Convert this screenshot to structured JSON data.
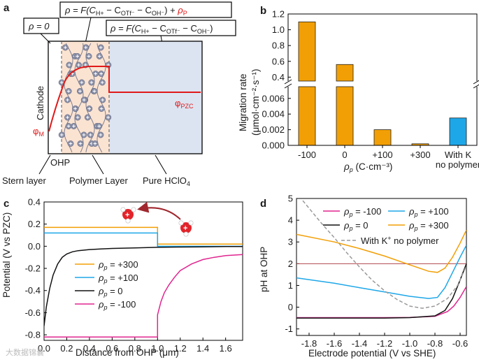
{
  "panel_a": {
    "label": "a",
    "eq_zero": "ρ = 0",
    "eq_polymer_pre": "ρ = F(C",
    "eq_polymer_h": "H+",
    "eq_polymer_mid1": " − C",
    "eq_polymer_otf": "OTf⁻",
    "eq_polymer_mid2": " − C",
    "eq_polymer_oh": "OH⁻",
    "eq_polymer_post": ") + ",
    "eq_polymer_rho": "ρ",
    "eq_polymer_rho_sub": "P",
    "eq_bulk_pre": "ρ = F(C",
    "eq_bulk_h": "H+",
    "eq_bulk_mid1": " − C",
    "eq_bulk_otf": "OTf⁻",
    "eq_bulk_mid2": " − C",
    "eq_bulk_oh": "OH⁻",
    "eq_bulk_post": ")",
    "cathode": "Cathode",
    "phi_m": "φ",
    "phi_m_sub": "M",
    "phi_pzc": "φ",
    "phi_pzc_sub": "PZC",
    "ohp": "OHP",
    "stern": "Stern layer",
    "polymer_layer": "Polymer Layer",
    "pure_pre": "Pure HClO",
    "pure_sub": "4",
    "colors": {
      "polymer_fill": "#fbe3d2",
      "bulk_fill": "#dce4f2",
      "potential": "#e11919"
    }
  },
  "panel_b": {
    "label": "b",
    "ylabel_main": "Migration rate",
    "ylabel_units": "(μmol·cm⁻²·s⁻¹)",
    "xlabel_pre": "ρ",
    "xlabel_sub": "p",
    "xlabel_post": " (C·cm⁻³)",
    "category_last_line2": "no polymer",
    "chart_data": {
      "type": "bar",
      "categories": [
        "-100",
        "0",
        "+100",
        "+300",
        "With K"
      ],
      "values": [
        1.1,
        0.56,
        0.002,
        0.0002,
        0.0035
      ],
      "colors": [
        "#f29f05",
        "#f29f05",
        "#f29f05",
        "#f29f05",
        "#1ea7e8"
      ],
      "y_upper_ticks": [
        "0.4",
        "0.6",
        "0.8",
        "1.0",
        "1.2"
      ],
      "y_lower_ticks": [
        "0.000",
        "0.002",
        "0.004",
        "0.006"
      ],
      "y_upper_range": [
        0.35,
        1.2
      ],
      "y_lower_range": [
        0,
        0.0075
      ],
      "broken_axis": true
    }
  },
  "panel_c": {
    "label": "c",
    "ylabel": "Potential (V vs PZC)",
    "xlabel": "Distance from OHP (μm)",
    "legend_rho": "ρ",
    "legend_sub": "p",
    "chart_data": {
      "type": "line",
      "xlim": [
        0,
        1.75
      ],
      "ylim": [
        -0.85,
        0.4
      ],
      "x_ticks": [
        "0.0",
        "0.2",
        "0.4",
        "0.6",
        "0.8",
        "1.0",
        "1.2",
        "1.4",
        "1.6"
      ],
      "y_ticks": [
        "-0.8",
        "-0.6",
        "-0.4",
        "-0.2",
        "0.0",
        "0.2",
        "0.4"
      ],
      "series": [
        {
          "name": "= +300",
          "color": "#f29f05",
          "x": [
            0,
            1.0,
            1.0,
            1.75
          ],
          "y": [
            0.17,
            0.17,
            0.02,
            0.02
          ]
        },
        {
          "name": "= +100",
          "color": "#1ea7e8",
          "x": [
            0,
            1.0,
            1.0,
            1.75
          ],
          "y": [
            0.12,
            0.12,
            0.0,
            0.0
          ]
        },
        {
          "name": "= 0",
          "color": "#111111",
          "x": [
            0,
            0.02,
            0.05,
            0.08,
            0.12,
            0.16,
            0.2,
            0.25,
            0.3,
            0.4,
            0.5,
            0.6,
            0.8,
            1.0,
            1.2,
            1.4,
            1.6,
            1.75
          ],
          "y": [
            -0.72,
            -0.55,
            -0.38,
            -0.26,
            -0.16,
            -0.1,
            -0.07,
            -0.05,
            -0.04,
            -0.03,
            -0.025,
            -0.02,
            -0.015,
            -0.01,
            -0.007,
            -0.005,
            -0.003,
            -0.002
          ]
        },
        {
          "name": "= -100",
          "color": "#e0258f",
          "x": [
            0,
            1.0,
            1.0,
            1.03,
            1.06,
            1.1,
            1.15,
            1.2,
            1.3,
            1.4,
            1.5,
            1.6,
            1.75
          ],
          "y": [
            -0.82,
            -0.82,
            -0.62,
            -0.5,
            -0.42,
            -0.35,
            -0.28,
            -0.22,
            -0.16,
            -0.12,
            -0.1,
            -0.085,
            -0.075
          ]
        }
      ]
    }
  },
  "panel_d": {
    "label": "d",
    "ylabel": "pH at OHP",
    "xlabel": "Electrode potential (V vs SHE)",
    "legend_rho": "ρ",
    "legend_sub": "p",
    "legend_k_pre": "With K",
    "legend_k_sup": "+",
    "legend_k_post": " no polymer",
    "chart_data": {
      "type": "line",
      "xlim": [
        -1.9,
        -0.55
      ],
      "ylim": [
        -1.3,
        5
      ],
      "x_ticks": [
        "-1.8",
        "-1.6",
        "-1.4",
        "-1.2",
        "-1.0",
        "-0.8",
        "-0.6"
      ],
      "y_ticks": [
        "-1",
        "0",
        "1",
        "2",
        "3",
        "4",
        "5"
      ],
      "reference_line_y": 2,
      "series": [
        {
          "name": "= -100",
          "color": "#e0258f",
          "x": [
            -1.9,
            -1.6,
            -1.2,
            -1.0,
            -0.8,
            -0.7,
            -0.65,
            -0.6,
            -0.55
          ],
          "y": [
            -0.48,
            -0.48,
            -0.48,
            -0.47,
            -0.42,
            -0.2,
            0.05,
            0.45,
            0.95
          ]
        },
        {
          "name": "= +100",
          "color": "#1ea7e8",
          "x": [
            -1.9,
            -1.6,
            -1.4,
            -1.2,
            -1.0,
            -0.85,
            -0.78,
            -0.72,
            -0.66,
            -0.6,
            -0.55
          ],
          "y": [
            1.35,
            1.1,
            0.9,
            0.7,
            0.5,
            0.4,
            0.45,
            0.9,
            1.6,
            2.3,
            2.85
          ]
        },
        {
          "name": "= 0",
          "color": "#111111",
          "x": [
            -1.9,
            -1.6,
            -1.2,
            -1.0,
            -0.8,
            -0.72,
            -0.66,
            -0.6,
            -0.55
          ],
          "y": [
            -0.5,
            -0.5,
            -0.5,
            -0.48,
            -0.4,
            -0.15,
            0.4,
            1.25,
            2.0
          ]
        },
        {
          "name": "= +300",
          "color": "#f29f05",
          "x": [
            -1.9,
            -1.6,
            -1.4,
            -1.2,
            -1.0,
            -0.85,
            -0.78,
            -0.72,
            -0.66,
            -0.6,
            -0.55
          ],
          "y": [
            3.35,
            3.0,
            2.7,
            2.35,
            1.95,
            1.65,
            1.6,
            1.8,
            2.3,
            2.95,
            3.55
          ]
        },
        {
          "name": "With K+ no polymer",
          "color": "#9a9a9a",
          "dashed": true,
          "x": [
            -1.85,
            -1.7,
            -1.6,
            -1.5,
            -1.4,
            -1.3,
            -1.2,
            -1.1,
            -1.0,
            -0.9,
            -0.8,
            -0.7,
            -0.62,
            -0.55
          ],
          "y": [
            4.9,
            3.85,
            3.2,
            2.5,
            1.85,
            1.25,
            0.75,
            0.35,
            0.05,
            -0.05,
            0.05,
            0.4,
            1.0,
            1.9
          ]
        }
      ]
    }
  },
  "watermark": "大数据锦囊"
}
